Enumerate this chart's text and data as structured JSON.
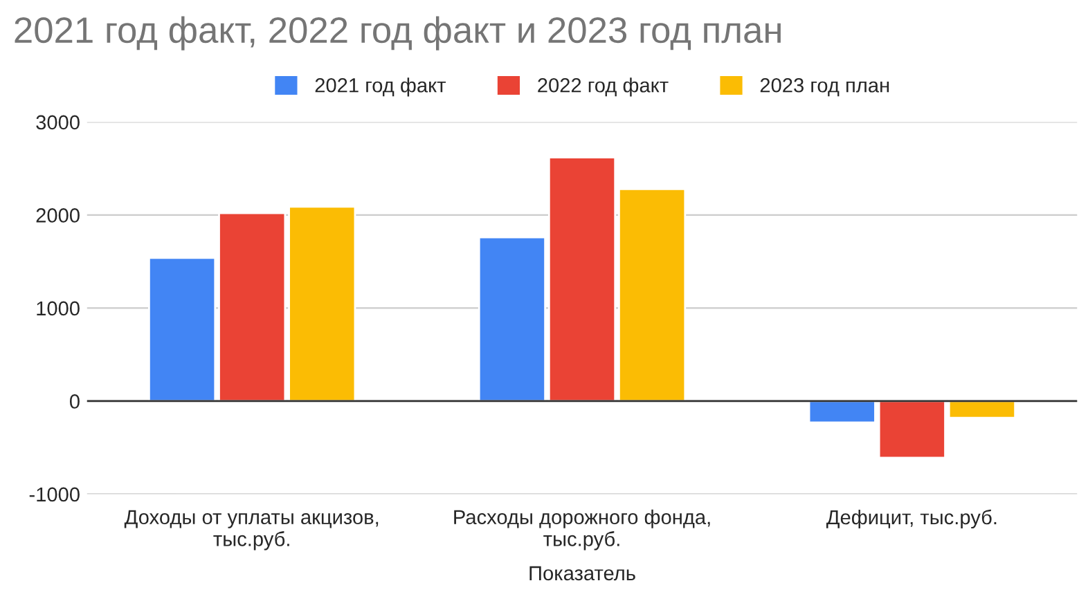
{
  "chart_data": {
    "type": "bar",
    "title": "2021 год факт, 2022 год факт и 2023 год план",
    "xlabel": "Показатель",
    "categories": [
      "Доходы от уплаты акцизов, тыс.руб.",
      "Расходы дорожного фонда, тыс.руб.",
      "Дефицит, тыс.руб."
    ],
    "series": [
      {
        "name": "2021 год факт",
        "color": "#4285f4",
        "values": [
          1540,
          1760,
          -230
        ]
      },
      {
        "name": "2022 год факт",
        "color": "#ea4335",
        "values": [
          2020,
          2620,
          -610
        ]
      },
      {
        "name": "2023 год план",
        "color": "#fbbc04",
        "values": [
          2090,
          2280,
          -180
        ]
      }
    ],
    "ylim": [
      -1000,
      3000
    ],
    "yticks": [
      -1000,
      0,
      1000,
      2000,
      3000
    ],
    "grid": "y",
    "legend": "top"
  }
}
